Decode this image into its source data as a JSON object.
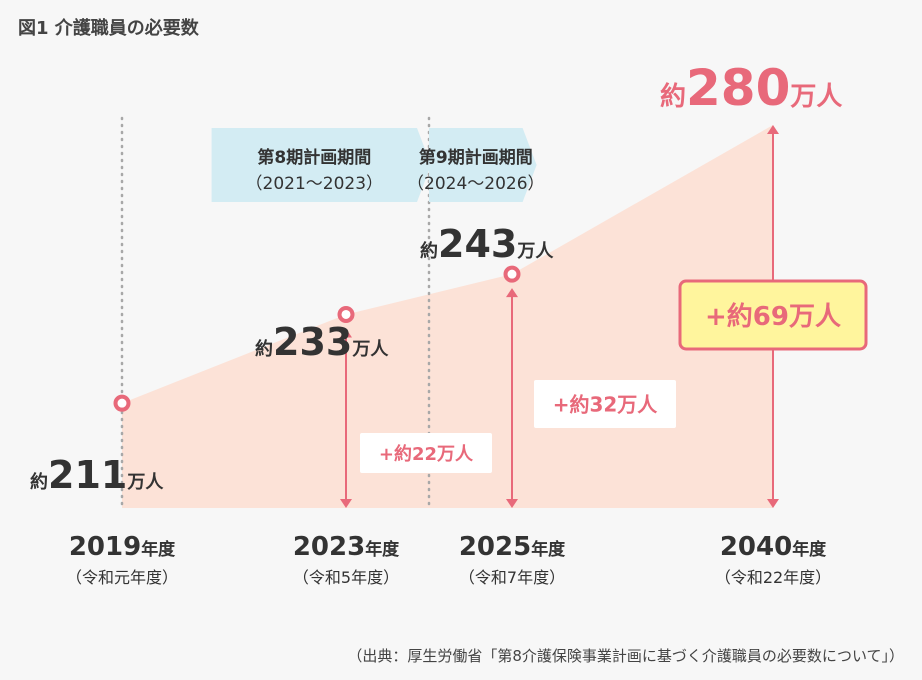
{
  "figure_title": "図1 介護職員の必要数",
  "source": "（出典：厚生労働省「第8介護保険事業計画に基づく介護職員の必要数について」）",
  "colors": {
    "accent": "#e8697a",
    "area": "#fce2d7",
    "period": "#d3ecf3",
    "highlight": "#fff59d",
    "text": "#333333"
  },
  "chart_data": {
    "type": "area",
    "x": [
      "2019年度",
      "2023年度",
      "2025年度",
      "2040年度"
    ],
    "x_sub": [
      "（令和元年度）",
      "（令和5年度）",
      "（令和7年度）",
      "（令和22年度）"
    ],
    "values": [
      211,
      233,
      243,
      280
    ],
    "value_prefix": "約",
    "unit": "万人",
    "increases": [
      "+約22万人",
      "+約32万人",
      "+約69万人"
    ],
    "periods": [
      {
        "title": "第8期計画期間",
        "years": "（2021～2023）"
      },
      {
        "title": "第9期計画期間",
        "years": "（2024～2026）"
      }
    ]
  }
}
